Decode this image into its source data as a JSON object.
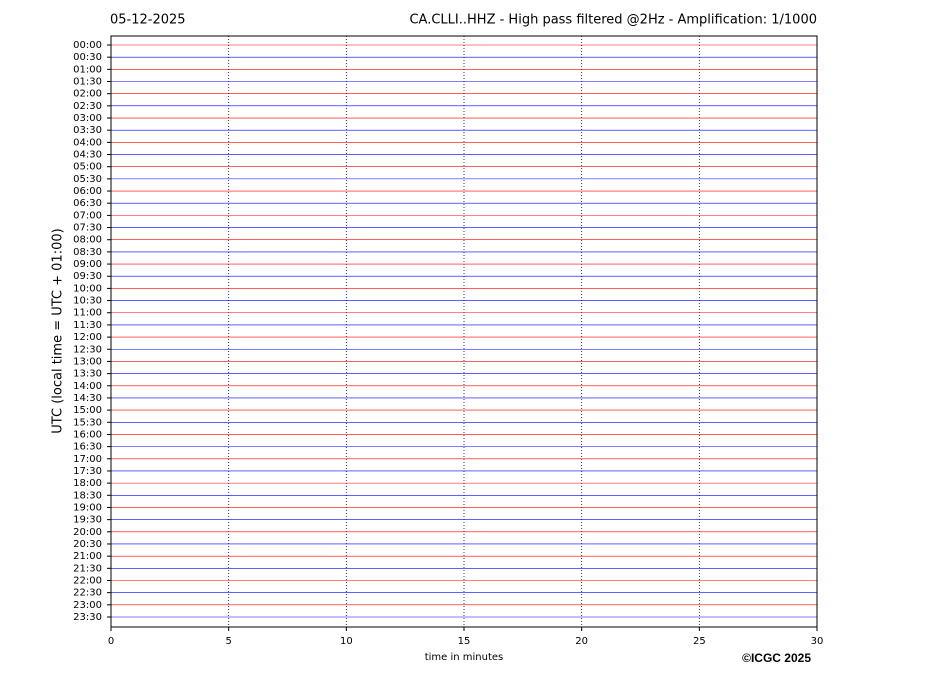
{
  "chart_data": {
    "type": "helicorder",
    "date": "05-12-2025",
    "title": "CA.CLLI..HHZ - High pass filtered @2Hz - Amplification: 1/1000",
    "ylabel": "UTC (local time = UTC + 01:00)",
    "xlabel": "time in minutes",
    "credit": "©ICGC 2025",
    "categories": [
      "00:00",
      "00:30",
      "01:00",
      "01:30",
      "02:00",
      "02:30",
      "03:00",
      "03:30",
      "04:00",
      "04:30",
      "05:00",
      "05:30",
      "06:00",
      "06:30",
      "07:00",
      "07:30",
      "08:00",
      "08:30",
      "09:00",
      "09:30",
      "10:00",
      "10:30",
      "11:00",
      "11:30",
      "12:00",
      "12:30",
      "13:00",
      "13:30",
      "14:00",
      "14:30",
      "15:00",
      "15:30",
      "16:00",
      "16:30",
      "17:00",
      "17:30",
      "18:00",
      "18:30",
      "19:00",
      "19:30",
      "20:00",
      "20:30",
      "21:00",
      "21:30",
      "22:00",
      "22:30",
      "23:00",
      "23:30"
    ],
    "colors": [
      "#ff0000",
      "#0000ff"
    ],
    "xlim": [
      0,
      30
    ],
    "xticks": [
      0,
      5,
      10,
      15,
      20,
      25,
      30
    ],
    "grid": true
  }
}
